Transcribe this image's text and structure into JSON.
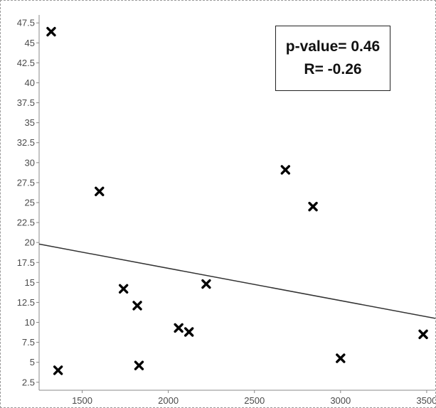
{
  "chart_data": {
    "type": "scatter",
    "title": "",
    "xlabel": "",
    "ylabel": "",
    "xlim": [
      1250,
      3550
    ],
    "ylim": [
      1.5,
      48.5
    ],
    "x_ticks": [
      "1500",
      "2000",
      "2500",
      "3000",
      "3500"
    ],
    "y_ticks": [
      "2.5",
      "5",
      "7.5",
      "10",
      "12.5",
      "15",
      "17.5",
      "20",
      "22.5",
      "25",
      "27.5",
      "30",
      "32.5",
      "35",
      "37.5",
      "40",
      "42.5",
      "45",
      "47.5"
    ],
    "points": [
      {
        "x": 1320,
        "y": 46.4
      },
      {
        "x": 1360,
        "y": 4.0
      },
      {
        "x": 1600,
        "y": 26.4
      },
      {
        "x": 1740,
        "y": 14.2
      },
      {
        "x": 1820,
        "y": 12.1
      },
      {
        "x": 1830,
        "y": 4.6
      },
      {
        "x": 2060,
        "y": 9.3
      },
      {
        "x": 2120,
        "y": 8.8
      },
      {
        "x": 2220,
        "y": 14.8
      },
      {
        "x": 2680,
        "y": 29.1
      },
      {
        "x": 2840,
        "y": 24.5
      },
      {
        "x": 3000,
        "y": 5.5
      },
      {
        "x": 3480,
        "y": 8.5
      }
    ],
    "regression_line": {
      "x": [
        1250,
        3550
      ],
      "y": [
        19.8,
        10.5
      ]
    },
    "grid": false,
    "marker": "x",
    "marker_color": "#000000",
    "line_color": "#333333",
    "annotation": {
      "p_value": "p-value= 0.46",
      "r_value": "R= -0.26"
    }
  }
}
